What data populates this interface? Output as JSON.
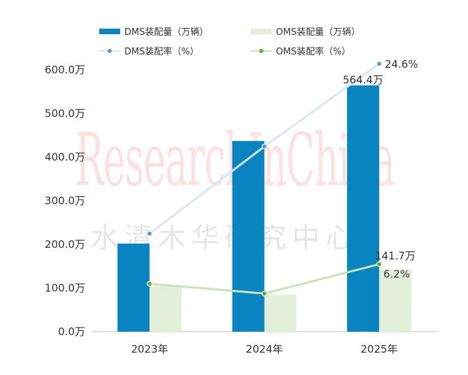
{
  "legend": {
    "bar1": "DMS装配量（万辆）",
    "bar2": "OMS装配量（万辆）",
    "line1": "DMS装配率（%）",
    "line2": "OMS装配率（%）"
  },
  "watermark": {
    "latin": "ResearchInChina",
    "chinese": "水清木华研究中心"
  },
  "colors": {
    "dms_bar": "#0a84c1",
    "oms_bar": "#e2efd8",
    "dms_line": "#d5e7f7",
    "dms_point": "#5b9bd5",
    "oms_line": "#c9e3b6",
    "oms_point": "#6aae3f",
    "axis": "#bfbfbf",
    "text": "#333333"
  },
  "chart_data": {
    "type": "bar",
    "categories": [
      "2023年",
      "2024年",
      "2025年"
    ],
    "ylim": [
      0,
      600
    ],
    "yticks": [
      "0.0万",
      "100.0万",
      "200.0万",
      "300.0万",
      "400.0万",
      "500.0万",
      "600.0万"
    ],
    "series": [
      {
        "name": "DMS装配量（万辆）",
        "kind": "bar",
        "values": [
          202,
          437,
          564.4
        ]
      },
      {
        "name": "OMS装配量（万辆）",
        "kind": "bar",
        "values": [
          104,
          85,
          141.7
        ]
      },
      {
        "name": "DMS装配率（%）",
        "kind": "line",
        "values": [
          9.0,
          17.0,
          24.6
        ]
      },
      {
        "name": "OMS装配率（%）",
        "kind": "line",
        "values": [
          4.4,
          3.5,
          6.2
        ]
      }
    ],
    "data_labels": {
      "dms_2025": "564.4万",
      "oms_2025": "141.7万",
      "dms_rate_2025": "24.6%",
      "oms_rate_2025": "6.2%"
    }
  }
}
